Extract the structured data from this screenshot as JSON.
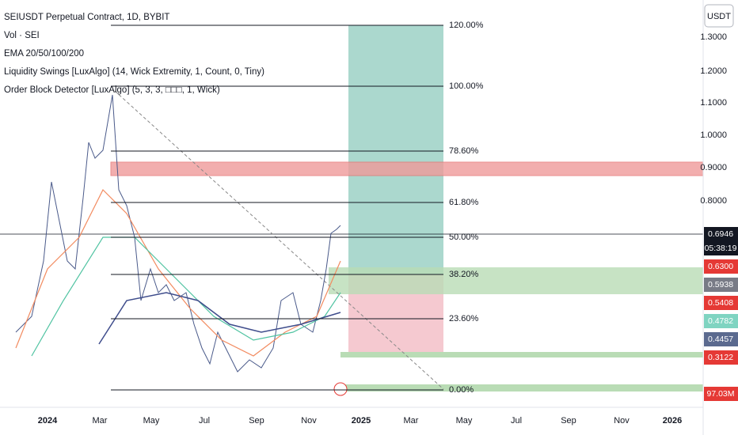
{
  "legend": [
    "SEIUSDT Perpetual Contract, 1D, BYBIT",
    "Vol · SEI",
    "EMA 20/50/100/200",
    "Liquidity Swings [LuxAlgo] (14, Wick Extremity, 1, Count, 0, Tiny)",
    "Order Block Detector [LuxAlgo] (5, 3, 3, □□□, 1, Wick)"
  ],
  "currency": "USDT",
  "price_axis": [
    "1.3000",
    "1.2000",
    "1.1000",
    "1.0000",
    "0.9000",
    "0.8000"
  ],
  "price_tags": [
    {
      "label": "0.6946",
      "color": "#131722"
    },
    {
      "label": "05:38:19",
      "color": "#131722"
    },
    {
      "label": "0.6300",
      "color": "#e53935"
    },
    {
      "label": "0.5938",
      "color": "#787b86"
    },
    {
      "label": "0.5408",
      "color": "#e53935"
    },
    {
      "label": "0.4782",
      "color": "#7fd4c1"
    },
    {
      "label": "0.4457",
      "color": "#5b6a8f"
    },
    {
      "label": "0.3122",
      "color": "#e53935"
    },
    {
      "label": "97.03M",
      "color": "#e53935"
    }
  ],
  "fib_levels": [
    "120.00%",
    "100.00%",
    "78.60%",
    "61.80%",
    "50.00%",
    "38.20%",
    "23.60%",
    "0.00%"
  ],
  "time_axis": [
    "2024",
    "Mar",
    "May",
    "Jul",
    "Sep",
    "Nov",
    "2025",
    "Mar",
    "May",
    "Jul",
    "Sep",
    "Nov",
    "2026"
  ]
}
